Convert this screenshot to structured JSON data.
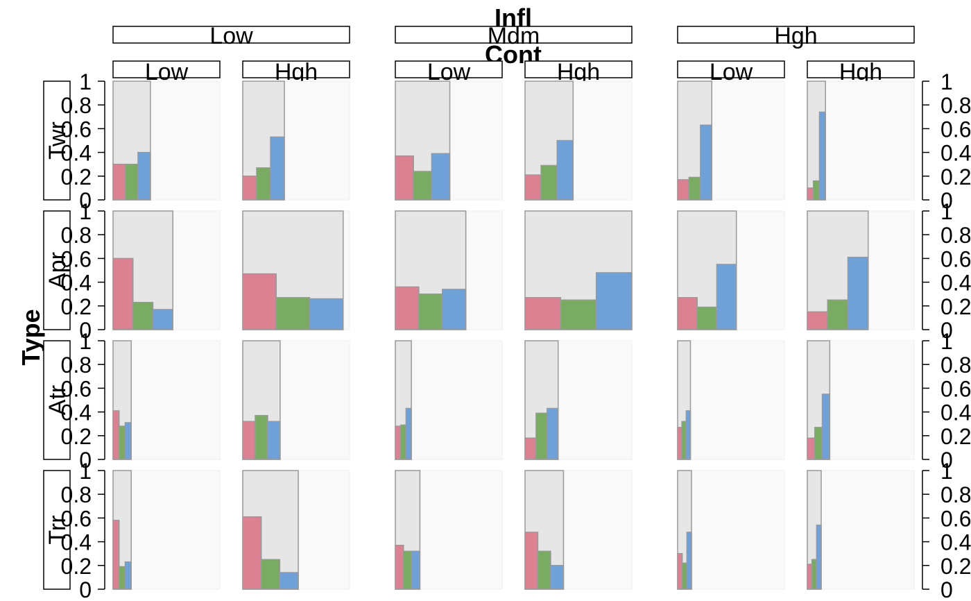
{
  "chart_data": {
    "type": "bar",
    "title": "",
    "column_factor": "Infl",
    "inner_factor": "Cont",
    "row_factor": "Type",
    "column_levels": [
      "Low",
      "Mdm",
      "Hgh"
    ],
    "inner_levels": [
      "Low",
      "Hgh"
    ],
    "row_levels": [
      "Twr",
      "Apr",
      "Atr",
      "Trr"
    ],
    "ylim": [
      0,
      1
    ],
    "ticks": [
      "0",
      "0.2",
      "0.4",
      "0.6",
      "0.8",
      "1"
    ],
    "series_colors": [
      "#dc8191",
      "#7aab63",
      "#6fa0d8"
    ],
    "panel_background": "#f9f9f9",
    "envelope_color": "#e6e6e6",
    "panels": [
      [
        {
          "width": 0.35,
          "values": [
            0.3,
            0.3,
            0.4
          ]
        },
        {
          "width": 0.39,
          "values": [
            0.2,
            0.27,
            0.53
          ]
        },
        {
          "width": 0.51,
          "values": [
            0.37,
            0.24,
            0.39
          ]
        },
        {
          "width": 0.45,
          "values": [
            0.21,
            0.29,
            0.5
          ]
        },
        {
          "width": 0.32,
          "values": [
            0.17,
            0.19,
            0.63
          ]
        },
        {
          "width": 0.17,
          "values": [
            0.1,
            0.16,
            0.74
          ]
        }
      ],
      [
        {
          "width": 0.56,
          "values": [
            0.6,
            0.23,
            0.17
          ]
        },
        {
          "width": 0.94,
          "values": [
            0.47,
            0.27,
            0.26
          ]
        },
        {
          "width": 0.66,
          "values": [
            0.36,
            0.3,
            0.34
          ]
        },
        {
          "width": 1.0,
          "values": [
            0.27,
            0.25,
            0.48
          ]
        },
        {
          "width": 0.55,
          "values": [
            0.27,
            0.19,
            0.55
          ]
        },
        {
          "width": 0.57,
          "values": [
            0.15,
            0.25,
            0.61
          ]
        }
      ],
      [
        {
          "width": 0.17,
          "values": [
            0.41,
            0.28,
            0.31
          ]
        },
        {
          "width": 0.35,
          "values": [
            0.32,
            0.37,
            0.32
          ]
        },
        {
          "width": 0.15,
          "values": [
            0.28,
            0.29,
            0.43
          ]
        },
        {
          "width": 0.31,
          "values": [
            0.18,
            0.39,
            0.43
          ]
        },
        {
          "width": 0.12,
          "values": [
            0.27,
            0.32,
            0.41
          ]
        },
        {
          "width": 0.21,
          "values": [
            0.18,
            0.27,
            0.55
          ]
        }
      ],
      [
        {
          "width": 0.17,
          "values": [
            0.58,
            0.19,
            0.23
          ]
        },
        {
          "width": 0.52,
          "values": [
            0.61,
            0.25,
            0.14
          ]
        },
        {
          "width": 0.23,
          "values": [
            0.37,
            0.32,
            0.32
          ]
        },
        {
          "width": 0.36,
          "values": [
            0.48,
            0.32,
            0.2
          ]
        },
        {
          "width": 0.13,
          "values": [
            0.3,
            0.22,
            0.48
          ]
        },
        {
          "width": 0.13,
          "values": [
            0.21,
            0.25,
            0.54
          ]
        }
      ]
    ]
  }
}
